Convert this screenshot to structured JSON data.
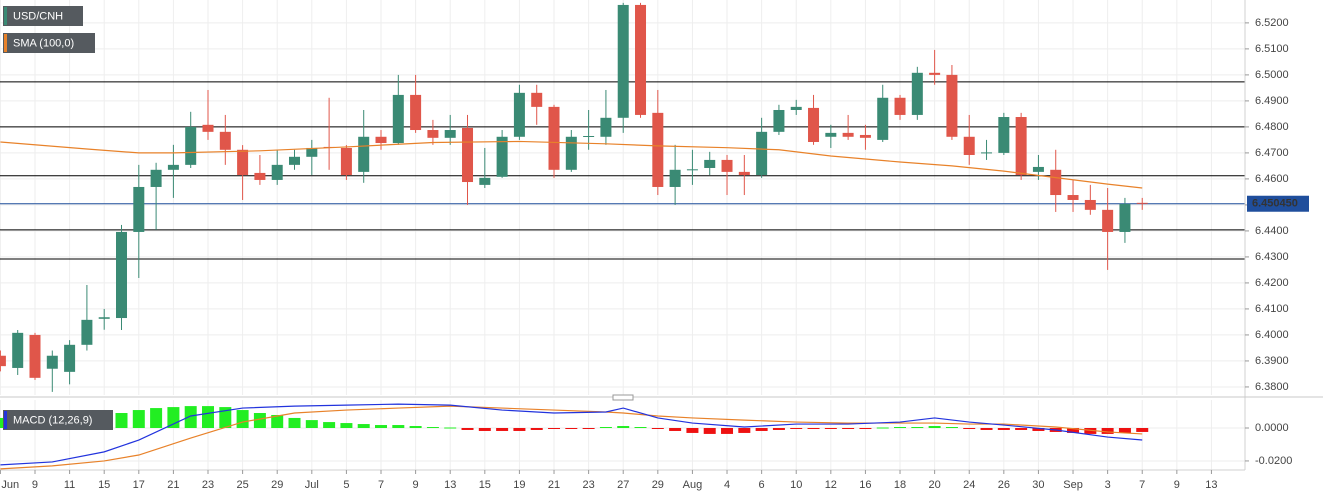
{
  "chart_data": [
    {
      "type": "candlestick",
      "title": "USD/CNH",
      "title_color": "#3a8a74",
      "up_color": "#3a8a74",
      "down_color": "#e0564a",
      "xlim": [
        -0.023,
        71.94
      ],
      "ylim": [
        6.3769,
        6.5288
      ],
      "grid": true,
      "yticks": [
        {
          "value": 6.38,
          "label": "6.3800"
        },
        {
          "value": 6.39,
          "label": "6.3900"
        },
        {
          "value": 6.4,
          "label": "6.4000"
        },
        {
          "value": 6.41,
          "label": "6.4100"
        },
        {
          "value": 6.42,
          "label": "6.4200"
        },
        {
          "value": 6.43,
          "label": "6.4300"
        },
        {
          "value": 6.44,
          "label": "6.4400"
        },
        {
          "value": 6.45,
          "label": "6.4500"
        },
        {
          "value": 6.46,
          "label": "6.4600"
        },
        {
          "value": 6.47,
          "label": "6.4700"
        },
        {
          "value": 6.48,
          "label": "6.4800"
        },
        {
          "value": 6.49,
          "label": "6.4900"
        },
        {
          "value": 6.5,
          "label": "6.5000"
        },
        {
          "value": 6.51,
          "label": "6.5100"
        },
        {
          "value": 6.52,
          "label": "6.5200"
        }
      ],
      "xticks": [
        {
          "value": 0,
          "label": "Jun"
        },
        {
          "value": 2,
          "label": "9"
        },
        {
          "value": 4,
          "label": "11"
        },
        {
          "value": 6,
          "label": "15"
        },
        {
          "value": 8,
          "label": "17"
        },
        {
          "value": 10,
          "label": "21"
        },
        {
          "value": 12,
          "label": "23"
        },
        {
          "value": 14,
          "label": "25"
        },
        {
          "value": 16,
          "label": "29"
        },
        {
          "value": 18,
          "label": "Jul"
        },
        {
          "value": 20,
          "label": "5"
        },
        {
          "value": 22,
          "label": "7"
        },
        {
          "value": 24,
          "label": "9"
        },
        {
          "value": 26,
          "label": "13"
        },
        {
          "value": 28,
          "label": "15"
        },
        {
          "value": 30,
          "label": "19"
        },
        {
          "value": 32,
          "label": "21"
        },
        {
          "value": 34,
          "label": "23"
        },
        {
          "value": 36,
          "label": "27"
        },
        {
          "value": 38,
          "label": "29"
        },
        {
          "value": 40,
          "label": "Aug"
        },
        {
          "value": 42,
          "label": "4"
        },
        {
          "value": 44,
          "label": "6"
        },
        {
          "value": 46,
          "label": "10"
        },
        {
          "value": 48,
          "label": "12"
        },
        {
          "value": 50,
          "label": "16"
        },
        {
          "value": 52,
          "label": "18"
        },
        {
          "value": 54,
          "label": "20"
        },
        {
          "value": 56,
          "label": "24"
        },
        {
          "value": 58,
          "label": "26"
        },
        {
          "value": 60,
          "label": "30"
        },
        {
          "value": 62,
          "label": "Sep"
        },
        {
          "value": 64,
          "label": "3"
        },
        {
          "value": 66,
          "label": "7"
        },
        {
          "value": 68,
          "label": "9"
        },
        {
          "value": 70,
          "label": "13"
        }
      ],
      "open": [
        6.392,
        6.3873,
        6.4,
        6.387,
        6.3858,
        6.3962,
        6.4062,
        6.4065,
        6.4396,
        6.4569,
        6.4635,
        6.4654,
        6.4808,
        6.4781,
        6.4712,
        6.4623,
        6.4596,
        6.4654,
        6.4685,
        6.4723,
        6.4719,
        6.4627,
        6.4762,
        6.4738,
        6.4923,
        6.4788,
        6.4758,
        6.4796,
        6.4577,
        6.4608,
        6.4762,
        6.4931,
        6.4877,
        6.4635,
        6.4762,
        6.4762,
        6.4835,
        6.5269,
        6.4854,
        6.4569,
        6.4633,
        6.4642,
        6.4673,
        6.4627,
        6.4615,
        6.4781,
        6.4865,
        6.4873,
        6.4762,
        6.4777,
        6.4769,
        6.475,
        6.4912,
        6.4846,
        6.5008,
        6.5,
        6.4762,
        6.4698,
        6.47,
        6.4838,
        6.4627,
        6.4635,
        6.4538,
        6.4519,
        6.4481,
        6.4396,
        6.4508
      ],
      "high": [
        6.394,
        6.4019,
        6.4008,
        6.394,
        6.398,
        6.4192,
        6.41,
        6.4423,
        6.4654,
        6.4662,
        6.4731,
        6.4858,
        6.4942,
        6.4846,
        6.473,
        6.4692,
        6.4712,
        6.4712,
        6.475,
        6.4912,
        6.473,
        6.4865,
        6.4788,
        6.5,
        6.5,
        6.4827,
        6.4846,
        6.4846,
        6.4719,
        6.4788,
        6.4962,
        6.4962,
        6.4885,
        6.4788,
        6.4865,
        6.4942,
        6.5277,
        6.5277,
        6.4942,
        6.4731,
        6.4712,
        6.4704,
        6.4692,
        6.4692,
        6.4835,
        6.4885,
        6.4904,
        6.4923,
        6.4808,
        6.4846,
        6.4808,
        6.4962,
        6.4923,
        6.5031,
        6.5096,
        6.5038,
        6.4846,
        6.475,
        6.4854,
        6.4854,
        6.4692,
        6.4712,
        6.4596,
        6.4577,
        6.4565,
        6.4527,
        6.4527
      ],
      "low": [
        6.386,
        6.3846,
        6.3827,
        6.3781,
        6.381,
        6.394,
        6.402,
        6.4019,
        6.4219,
        6.4404,
        6.4527,
        6.4642,
        6.475,
        6.4654,
        6.4519,
        6.4577,
        6.4577,
        6.4635,
        6.4615,
        6.4635,
        6.4596,
        6.4585,
        6.4712,
        6.4731,
        6.4777,
        6.4731,
        6.4731,
        6.45,
        6.4565,
        6.4604,
        6.475,
        6.4808,
        6.4604,
        6.4627,
        6.4712,
        6.4731,
        6.4777,
        6.4835,
        6.4538,
        6.45,
        6.4577,
        6.4615,
        6.4538,
        6.4538,
        6.4604,
        6.4769,
        6.4846,
        6.4731,
        6.4719,
        6.475,
        6.4712,
        6.4742,
        6.4827,
        6.4827,
        6.4962,
        6.475,
        6.4654,
        6.4673,
        6.4692,
        6.4596,
        6.4596,
        6.4473,
        6.4473,
        6.4462,
        6.425,
        6.4354,
        6.4481
      ],
      "close": [
        6.388,
        6.4008,
        6.3835,
        6.392,
        6.3962,
        6.4058,
        6.4068,
        6.4396,
        6.4569,
        6.4635,
        6.4654,
        6.48,
        6.4781,
        6.4712,
        6.4615,
        6.4596,
        6.4654,
        6.4685,
        6.4719,
        6.4719,
        6.4615,
        6.4762,
        6.4738,
        6.4923,
        6.4788,
        6.4758,
        6.4788,
        6.4588,
        6.4604,
        6.4762,
        6.4931,
        6.4877,
        6.4635,
        6.4762,
        6.4765,
        6.4835,
        6.5269,
        6.4846,
        6.4569,
        6.4635,
        6.4637,
        6.4673,
        6.4627,
        6.4615,
        6.4781,
        6.4865,
        6.4877,
        6.4742,
        6.4777,
        6.4762,
        6.4758,
        6.4912,
        6.4846,
        6.5008,
        6.5,
        6.4762,
        6.4692,
        6.4702,
        6.4838,
        6.4615,
        6.4646,
        6.4538,
        6.4519,
        6.4481,
        6.4396,
        6.4504,
        6.4505
      ],
      "sma": {
        "name": "SMA (100,0)",
        "color": "#e8822a",
        "x": [
          0,
          5,
          8,
          10,
          15,
          20,
          25,
          30,
          35,
          38,
          42,
          45,
          48,
          52,
          55,
          58,
          61,
          64,
          66
        ],
        "values": [
          6.4742,
          6.4715,
          6.47,
          6.47,
          6.4708,
          6.4723,
          6.474,
          6.4744,
          6.4735,
          6.4727,
          6.472,
          6.4712,
          6.4688,
          6.4665,
          6.465,
          6.463,
          6.4605,
          6.458,
          6.4565
        ]
      },
      "levels": [
        6.4973,
        6.48,
        6.4612,
        6.4404,
        6.4292
      ],
      "level_color": "#000000",
      "last_price": {
        "value": 6.45045,
        "label": "6.450450",
        "color": "#1f4e9c"
      }
    },
    {
      "type": "macd",
      "title": "MACD (12,26,9)",
      "title_color": "#2233dd",
      "ylim": [
        -0.0255,
        0.017
      ],
      "yticks": [
        {
          "value": 0,
          "label": "0.0000"
        },
        {
          "value": -0.02,
          "label": "-0.0200"
        }
      ],
      "histogram": {
        "positive_color": "#22ee22",
        "negative_color": "#ee1111",
        "values": [
          0.0061,
          0.0061,
          0.0061,
          0.0073,
          0.0085,
          0.0091,
          0.0091,
          0.0091,
          0.0109,
          0.0121,
          0.0127,
          0.0133,
          0.0133,
          0.0127,
          0.0109,
          0.0091,
          0.0079,
          0.0061,
          0.0048,
          0.0036,
          0.003,
          0.0024,
          0.0018,
          0.0018,
          0.0012,
          0.0006,
          0.0003,
          -0.0012,
          -0.0018,
          -0.0018,
          -0.0018,
          -0.0012,
          -0.0006,
          -0.0003,
          -0.0003,
          0.0006,
          0.0012,
          0.0006,
          -0.0006,
          -0.0018,
          -0.003,
          -0.0036,
          -0.0036,
          -0.003,
          -0.0018,
          -0.0012,
          -0.0006,
          -0.0006,
          -0.0006,
          -0.0006,
          -0.0003,
          0.0003,
          0.0006,
          0.0006,
          0.0012,
          0.0006,
          -0.0006,
          -0.0012,
          -0.0012,
          -0.0012,
          -0.0018,
          -0.0024,
          -0.003,
          -0.0036,
          -0.0036,
          -0.003,
          -0.0024
        ]
      },
      "lines_x": [
        0,
        3,
        6,
        8,
        11,
        14,
        17,
        20,
        23,
        26,
        29,
        32,
        35,
        36,
        38,
        40,
        43,
        46,
        49,
        52,
        54,
        56,
        58,
        61,
        64,
        66
      ],
      "macd_line": {
        "color": "#2233dd",
        "values": [
          -0.0224,
          -0.0206,
          -0.0145,
          -0.0073,
          0.0073,
          0.0121,
          0.0133,
          0.0139,
          0.0145,
          0.0139,
          0.0109,
          0.0091,
          0.0097,
          0.0121,
          0.0061,
          0.003,
          0.0006,
          0.0024,
          0.0024,
          0.0036,
          0.0061,
          0.0036,
          0.0018,
          -0.0012,
          -0.0055,
          -0.0073
        ]
      },
      "signal_line": {
        "color": "#e8822a",
        "values": [
          -0.0248,
          -0.023,
          -0.02,
          -0.0164,
          -0.0061,
          0.0036,
          0.0091,
          0.0109,
          0.0121,
          0.0133,
          0.0121,
          0.0109,
          0.0097,
          0.0091,
          0.0073,
          0.0061,
          0.0048,
          0.0036,
          0.003,
          0.003,
          0.003,
          0.0024,
          0.0024,
          0.0006,
          -0.0024,
          -0.0036
        ]
      }
    }
  ]
}
